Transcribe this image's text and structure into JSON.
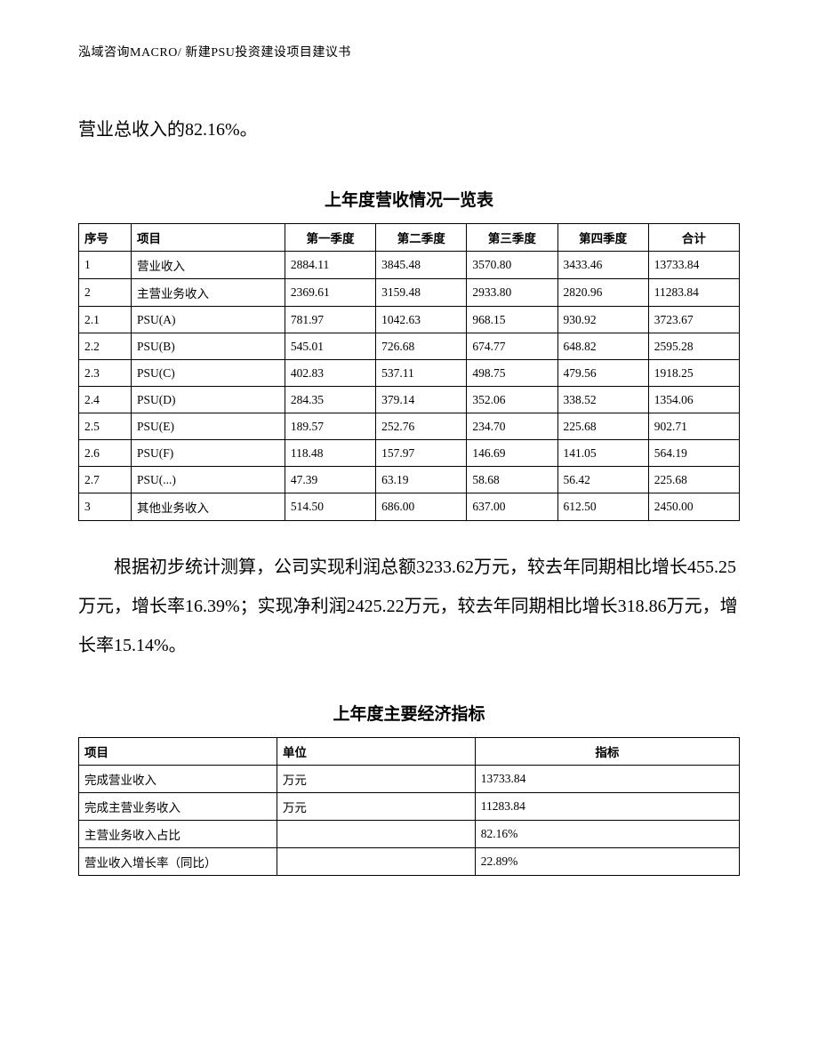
{
  "header": "泓域咨询MACRO/   新建PSU投资建设项目建议书",
  "intro": "营业总收入的82.16%。",
  "table1": {
    "title": "上年度营收情况一览表",
    "headers": [
      "序号",
      "项目",
      "第一季度",
      "第二季度",
      "第三季度",
      "第四季度",
      "合计"
    ],
    "rows": [
      [
        "1",
        "营业收入",
        "2884.11",
        "3845.48",
        "3570.80",
        "3433.46",
        "13733.84"
      ],
      [
        "2",
        "主营业务收入",
        "2369.61",
        "3159.48",
        "2933.80",
        "2820.96",
        "11283.84"
      ],
      [
        "2.1",
        "PSU(A)",
        "781.97",
        "1042.63",
        "968.15",
        "930.92",
        "3723.67"
      ],
      [
        "2.2",
        "PSU(B)",
        "545.01",
        "726.68",
        "674.77",
        "648.82",
        "2595.28"
      ],
      [
        "2.3",
        "PSU(C)",
        "402.83",
        "537.11",
        "498.75",
        "479.56",
        "1918.25"
      ],
      [
        "2.4",
        "PSU(D)",
        "284.35",
        "379.14",
        "352.06",
        "338.52",
        "1354.06"
      ],
      [
        "2.5",
        "PSU(E)",
        "189.57",
        "252.76",
        "234.70",
        "225.68",
        "902.71"
      ],
      [
        "2.6",
        "PSU(F)",
        "118.48",
        "157.97",
        "146.69",
        "141.05",
        "564.19"
      ],
      [
        "2.7",
        "PSU(...)",
        "47.39",
        "63.19",
        "58.68",
        "56.42",
        "225.68"
      ],
      [
        "3",
        "其他业务收入",
        "514.50",
        "686.00",
        "637.00",
        "612.50",
        "2450.00"
      ]
    ]
  },
  "paragraph": "根据初步统计测算，公司实现利润总额3233.62万元，较去年同期相比增长455.25万元，增长率16.39%；实现净利润2425.22万元，较去年同期相比增长318.86万元，增长率15.14%。",
  "table2": {
    "title": "上年度主要经济指标",
    "headers": [
      "项目",
      "单位",
      "指标"
    ],
    "rows": [
      [
        "完成营业收入",
        "万元",
        "13733.84"
      ],
      [
        "完成主营业务收入",
        "万元",
        "11283.84"
      ],
      [
        "主营业务收入占比",
        "",
        "82.16%"
      ],
      [
        "营业收入增长率（同比）",
        "",
        "22.89%"
      ]
    ]
  }
}
